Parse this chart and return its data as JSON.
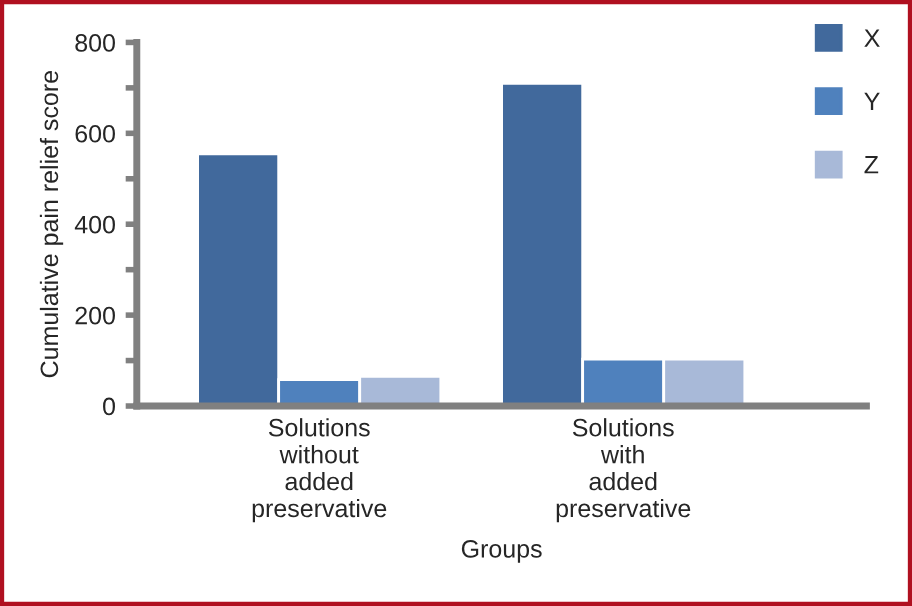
{
  "chart_data": {
    "type": "bar",
    "xlabel": "Groups",
    "ylabel": "Cumulative pain relief score",
    "categories": [
      "Solutions without added preservative",
      "Solutions with added preservative"
    ],
    "series": [
      {
        "name": "X",
        "color": "#41699c",
        "values": [
          555,
          710
        ]
      },
      {
        "name": "Y",
        "color": "#4f81bd",
        "values": [
          58,
          103
        ]
      },
      {
        "name": "Z",
        "color": "#a8b9d8",
        "values": [
          65,
          103
        ]
      }
    ],
    "ylim": [
      0,
      800
    ],
    "yticks": [
      0,
      {
        "value": 100,
        "label": null
      },
      200,
      {
        "value": 300,
        "label": null
      },
      400,
      {
        "value": 500,
        "label": null
      },
      600,
      {
        "value": 700,
        "label": null
      },
      800
    ],
    "grid": false,
    "legend": "top right"
  }
}
